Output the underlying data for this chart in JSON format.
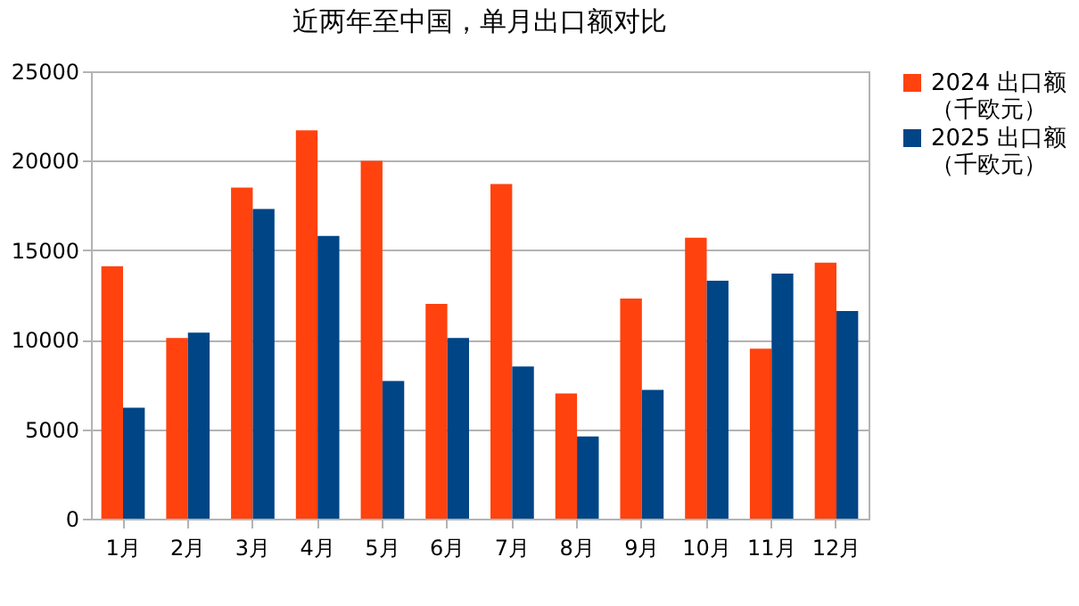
{
  "chart_data": {
    "type": "bar",
    "title": "近两年至中国，单月出口额对比",
    "categories": [
      "1月",
      "2月",
      "3月",
      "4月",
      "5月",
      "6月",
      "7月",
      "8月",
      "9月",
      "10月",
      "11月",
      "12月"
    ],
    "series": [
      {
        "name": "2024 出口额（千欧元）",
        "color": "#ff420e",
        "values": [
          14100,
          10100,
          18500,
          21700,
          20000,
          12000,
          18700,
          7000,
          12300,
          15700,
          9500,
          14300
        ]
      },
      {
        "name": "2025 出口额（千欧元）",
        "color": "#004586",
        "values": [
          6200,
          10400,
          17300,
          15800,
          7700,
          10100,
          8500,
          4600,
          7200,
          13300,
          13700,
          11600
        ]
      }
    ],
    "ylim": [
      0,
      25000
    ],
    "yticks": [
      0,
      5000,
      10000,
      15000,
      20000,
      25000
    ],
    "grid": "y",
    "legend": "right"
  }
}
